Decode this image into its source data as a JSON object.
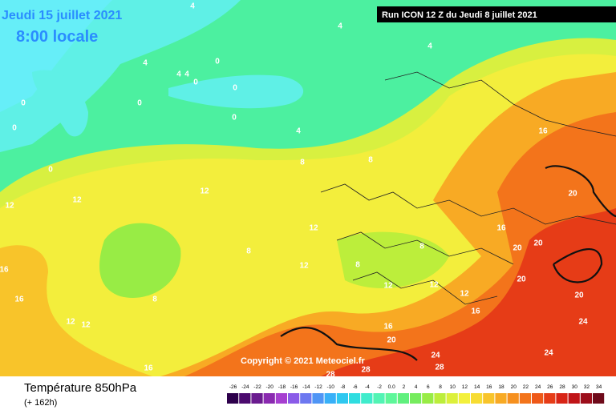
{
  "header": {
    "date": "Jeudi 15 juillet 2021",
    "time": "8:00 locale",
    "run": "Run ICON 12 Z du Jeudi 8 juillet 2021"
  },
  "copyright": "Copyright © 2021 Meteociel.fr",
  "footer": {
    "title": "Température 850hPa",
    "lead": "(+ 162h)"
  },
  "color_scale": {
    "ticks": [
      -26,
      -24,
      -22,
      -20,
      -18,
      -16,
      -14,
      -12,
      -10,
      -8,
      -6,
      -4,
      -2,
      {
        "value": 0,
        "label": "0.0"
      },
      2,
      4,
      6,
      8,
      10,
      12,
      14,
      16,
      18,
      20,
      22,
      24,
      26,
      28,
      30,
      32,
      34
    ],
    "colors": [
      "#2d004b",
      "#4b0a6e",
      "#6a1b8f",
      "#8a2ab0",
      "#a63fd0",
      "#8a5be8",
      "#6d78f0",
      "#4f95f5",
      "#38b0f8",
      "#2ec8f0",
      "#2fdde0",
      "#3feccc",
      "#52f4b4",
      "#5ef79a",
      "#60f07e",
      "#76ec5e",
      "#98ec45",
      "#bcee3b",
      "#dcf03a",
      "#f3f03c",
      "#f7dc32",
      "#f8c42a",
      "#f8aa24",
      "#f6901f",
      "#f3741b",
      "#ee5818",
      "#e63c17",
      "#d82416",
      "#c01418",
      "#9c0d1b",
      "#6e0a1a"
    ]
  },
  "map_labels": [
    "4",
    "4",
    "4",
    "4",
    "4",
    "0",
    "0",
    "0",
    "0",
    "0",
    "0",
    "0",
    "0",
    "4",
    "4",
    "8",
    "8",
    "12",
    "12",
    "12",
    "12",
    "12",
    "12",
    "12",
    "12",
    "8",
    "8",
    "8",
    "8",
    "16",
    "16",
    "16",
    "16",
    "16",
    "16",
    "16",
    "20",
    "20",
    "20",
    "20",
    "20",
    "20",
    "24",
    "24",
    "24",
    "28",
    "28",
    "28",
    "12",
    "12"
  ]
}
